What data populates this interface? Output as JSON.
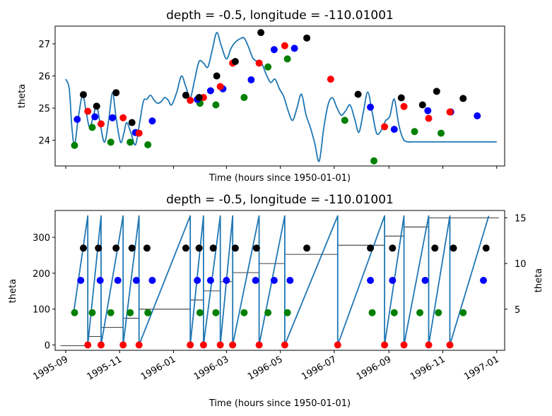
{
  "chart_data": [
    {
      "type": "line",
      "title": "depth = -0.5, longitude = -110.01001",
      "xlabel": "Time (hours since 1950-01-01)",
      "ylabel": "theta",
      "xlim": [
        "1995-08-20",
        "1997-01-10"
      ],
      "ylim": [
        23.2,
        27.55
      ],
      "yticks": [
        24,
        25,
        26,
        27
      ],
      "xtick_dates": [
        "1995-09-01",
        "1995-11-01",
        "1996-01-01",
        "1996-03-01",
        "1996-05-01",
        "1996-07-01",
        "1996-09-01",
        "1996-11-01",
        "1997-01-01"
      ],
      "grid": false,
      "line_color": "#1f77b4",
      "series": [
        {
          "x": [
            "1995-09-01",
            "1995-09-05",
            "1995-09-08",
            "1995-09-11",
            "1995-09-15",
            "1995-09-20",
            "1995-09-24",
            "1995-09-28",
            "1995-10-02",
            "1995-10-06",
            "1995-10-10",
            "1995-10-15",
            "1995-10-20",
            "1995-10-24",
            "1995-10-28",
            "1995-11-02",
            "1995-11-06",
            "1995-11-09",
            "1995-11-14",
            "1995-11-19",
            "1995-11-24",
            "1995-11-28",
            "1995-12-02",
            "1995-12-06",
            "1995-12-10",
            "1995-12-14",
            "1995-12-18",
            "1995-12-22",
            "1995-12-26",
            "1995-12-30",
            "1996-01-05",
            "1996-01-10",
            "1996-01-15",
            "1996-01-20",
            "1996-01-25",
            "1996-01-30",
            "1996-02-04",
            "1996-02-09",
            "1996-02-14",
            "1996-02-19",
            "1996-02-24",
            "1996-03-01",
            "1996-03-06",
            "1996-03-11",
            "1996-03-16",
            "1996-03-21",
            "1996-03-26",
            "1996-03-31",
            "1996-04-05",
            "1996-04-10",
            "1996-04-15",
            "1996-04-20",
            "1996-04-25",
            "1996-04-30",
            "1996-05-05",
            "1996-05-10",
            "1996-05-15",
            "1996-05-20",
            "1996-05-25",
            "1996-05-30",
            "1996-06-04",
            "1996-06-09",
            "1996-06-14",
            "1996-06-19",
            "1996-06-24",
            "1996-06-29",
            "1996-07-04",
            "1996-07-09",
            "1996-07-14",
            "1996-07-19",
            "1996-07-24",
            "1996-07-29",
            "1996-08-03",
            "1996-08-08",
            "1996-08-13",
            "1996-08-18",
            "1996-08-23",
            "1996-08-28",
            "1996-09-02",
            "1996-09-07",
            "1996-09-12",
            "1996-09-17",
            "1996-09-22",
            "1996-09-27",
            "1996-10-02",
            "1996-10-07",
            "1996-10-12",
            "1996-10-17",
            "1996-10-22",
            "1996-10-27",
            "1996-11-01",
            "1996-11-06",
            "1996-11-11",
            "1996-11-16",
            "1996-11-21",
            "1996-11-26",
            "1996-12-01",
            "1996-12-06",
            "1996-12-11",
            "1996-12-16",
            "1996-12-21",
            "1996-12-26",
            "1997-01-01"
          ],
          "y": [
            25.9,
            25.6,
            24.4,
            23.85,
            24.65,
            25.42,
            24.9,
            24.4,
            24.72,
            25.06,
            24.52,
            23.94,
            24.69,
            25.48,
            24.7,
            23.94,
            24.24,
            24.55,
            24.22,
            23.86,
            24.6,
            25.22,
            25.28,
            25.4,
            25.25,
            25.15,
            25.2,
            25.33,
            25.25,
            25.1,
            25.52,
            26.0,
            25.67,
            25.32,
            25.88,
            26.45,
            26.4,
            26.28,
            26.82,
            27.35,
            26.95,
            26.53,
            26.85,
            27.05,
            27.15,
            27.18,
            26.9,
            26.55,
            26.45,
            26.38,
            26.05,
            25.8,
            25.9,
            25.6,
            25.35,
            24.9,
            24.62,
            25.02,
            25.43,
            24.8,
            24.4,
            23.9,
            23.35,
            24.35,
            25.1,
            25.32,
            25.02,
            24.78,
            24.92,
            25.1,
            24.68,
            24.25,
            24.88,
            25.5,
            24.87,
            24.22,
            24.3,
            24.6,
            24.75,
            25.28,
            24.5,
            24.05,
            23.95,
            23.95,
            23.95,
            23.95,
            23.95,
            23.95,
            23.95,
            23.95,
            23.95,
            23.95,
            23.95,
            23.95,
            23.95,
            23.95,
            23.95,
            23.95,
            23.95,
            23.95,
            23.95,
            23.95,
            23.95
          ]
        }
      ],
      "markers": {
        "green": {
          "color": "#008000",
          "x": [
            "1995-09-11",
            "1995-10-01",
            "1995-10-22",
            "1995-11-13",
            "1995-12-03",
            "1996-01-31",
            "1996-02-18",
            "1996-03-21",
            "1996-04-17",
            "1996-05-09",
            "1996-07-13",
            "1996-08-15",
            "1996-09-30",
            "1996-10-30"
          ],
          "y": [
            23.84,
            24.4,
            23.94,
            23.94,
            23.86,
            25.15,
            25.1,
            25.33,
            26.28,
            26.53,
            24.62,
            23.36,
            24.27,
            24.22
          ]
        },
        "blue": {
          "color": "#0000ff",
          "x": [
            "1995-09-14",
            "1995-10-04",
            "1995-10-24",
            "1995-11-19",
            "1995-12-08",
            "1996-01-28",
            "1996-02-12",
            "1996-02-26",
            "1996-03-29",
            "1996-04-24",
            "1996-05-17",
            "1996-08-11",
            "1996-09-07",
            "1996-10-15",
            "1996-11-10",
            "1996-12-10"
          ],
          "y": [
            24.65,
            24.73,
            24.7,
            24.24,
            24.6,
            25.27,
            25.54,
            25.6,
            25.88,
            26.82,
            26.86,
            25.03,
            24.34,
            24.92,
            24.88,
            24.76
          ]
        },
        "red": {
          "color": "#ff0000",
          "x": [
            "1995-09-26",
            "1995-10-11",
            "1995-11-05",
            "1995-11-23",
            "1996-01-20",
            "1996-02-04",
            "1996-02-23",
            "1996-03-08",
            "1996-04-07",
            "1996-05-06",
            "1996-06-27",
            "1996-08-27",
            "1996-09-18",
            "1996-10-16",
            "1996-11-09"
          ],
          "y": [
            24.9,
            24.51,
            24.7,
            24.22,
            25.24,
            25.33,
            25.67,
            26.4,
            26.4,
            26.94,
            25.9,
            24.42,
            25.05,
            24.68,
            24.88
          ]
        },
        "black": {
          "color": "#000000",
          "x": [
            "1995-09-21",
            "1995-10-06",
            "1995-10-28",
            "1995-11-15",
            "1996-01-15",
            "1996-01-30",
            "1996-02-19",
            "1996-03-11",
            "1996-04-09",
            "1996-05-31",
            "1996-07-28",
            "1996-09-15",
            "1996-10-09",
            "1996-10-25",
            "1996-11-24"
          ],
          "y": [
            25.42,
            25.06,
            25.48,
            24.55,
            25.4,
            25.33,
            26.0,
            26.45,
            27.35,
            27.18,
            25.43,
            25.32,
            25.1,
            25.52,
            25.3
          ]
        }
      }
    },
    {
      "type": "line",
      "title": "depth = -0.5, longitude = -110.01001",
      "xlabel": "Time (hours since 1950-01-01)",
      "ylabel": "theta",
      "ylabel_right": "theta",
      "xlim": [
        "1995-08-20",
        "1997-01-10"
      ],
      "ylim": [
        -15,
        375
      ],
      "yticks": [
        0,
        100,
        200,
        300
      ],
      "ylim_right": [
        0.5,
        15.8
      ],
      "yticks_right": [
        5,
        10,
        15
      ],
      "xtick_labels": [
        "1995-09",
        "1995-11",
        "1996-01",
        "1996-03",
        "1996-05",
        "1996-07",
        "1996-09",
        "1996-11",
        "1997-01"
      ],
      "xtick_dates": [
        "1995-09-01",
        "1995-11-01",
        "1996-01-01",
        "1996-03-01",
        "1996-05-01",
        "1996-07-01",
        "1996-09-01",
        "1996-11-01",
        "1997-01-01"
      ],
      "grid": false,
      "line_color": "#1f77b4",
      "zero_dates": [
        "1995-09-26",
        "1995-10-11",
        "1995-11-05",
        "1995-11-23",
        "1996-01-20",
        "1996-02-04",
        "1996-02-23",
        "1996-03-08",
        "1996-04-07",
        "1996-05-06",
        "1996-07-05",
        "1996-08-27",
        "1996-09-18",
        "1996-10-16",
        "1996-11-09"
      ],
      "markers": {
        "red": {
          "color": "#ff0000",
          "y": 0,
          "x": [
            "1995-09-26",
            "1995-10-11",
            "1995-11-05",
            "1995-11-23",
            "1996-01-20",
            "1996-02-04",
            "1996-02-23",
            "1996-03-08",
            "1996-04-07",
            "1996-05-06",
            "1996-07-05",
            "1996-08-27",
            "1996-09-18",
            "1996-10-16",
            "1996-11-09"
          ]
        },
        "green": {
          "color": "#008000",
          "y": 90,
          "x": [
            "1995-09-11",
            "1995-10-01",
            "1995-10-22",
            "1995-11-13",
            "1995-12-03",
            "1996-01-31",
            "1996-02-18",
            "1996-03-21",
            "1996-04-17",
            "1996-05-09",
            "1996-08-13",
            "1996-09-07",
            "1996-10-06",
            "1996-10-27",
            "1996-11-24"
          ]
        },
        "blue": {
          "color": "#0000ff",
          "y": 180,
          "x": [
            "1995-09-18",
            "1995-10-10",
            "1995-10-30",
            "1995-11-20",
            "1995-12-08",
            "1996-01-28",
            "1996-02-12",
            "1996-03-01",
            "1996-04-03",
            "1996-04-24",
            "1996-05-12",
            "1996-08-11",
            "1996-09-05",
            "1996-10-12",
            "1996-12-17"
          ]
        },
        "black": {
          "color": "#000000",
          "y": 270,
          "x": [
            "1995-09-21",
            "1995-10-08",
            "1995-10-28",
            "1995-11-15",
            "1995-12-02",
            "1996-01-15",
            "1996-01-30",
            "1996-02-15",
            "1996-03-11",
            "1996-04-04",
            "1996-05-31",
            "1996-08-11",
            "1996-09-05",
            "1996-10-23",
            "1996-11-13",
            "1996-12-20"
          ]
        }
      },
      "step_series_right": {
        "x": [
          "1995-09-11",
          "1995-09-26",
          "1995-10-11",
          "1995-11-05",
          "1995-11-23",
          "1996-01-20",
          "1996-02-04",
          "1996-02-23",
          "1996-03-08",
          "1996-04-07",
          "1996-05-06",
          "1996-07-05",
          "1996-08-27",
          "1996-09-18",
          "1996-10-16",
          "1996-11-09",
          "1997-01-01"
        ],
        "y": [
          1,
          2,
          3,
          4,
          5,
          6,
          7,
          8,
          9,
          10,
          11,
          12,
          13,
          14,
          15,
          15,
          15
        ]
      }
    }
  ]
}
